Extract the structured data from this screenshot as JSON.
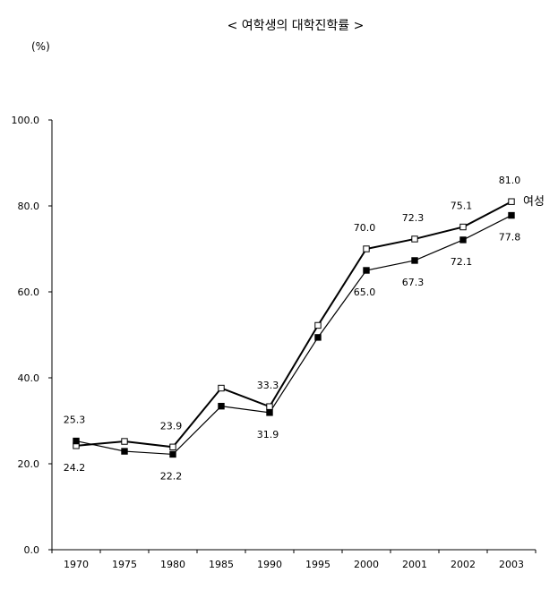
{
  "chart_data": {
    "type": "line",
    "title": "< 여학생의 대학진학률 >",
    "y_unit": "(%)",
    "categories": [
      "1970",
      "1975",
      "1980",
      "1985",
      "1990",
      "1995",
      "2000",
      "2001",
      "2002",
      "2003"
    ],
    "ylim": [
      0,
      100
    ],
    "y_ticks": [
      "0.0",
      "20.0",
      "40.0",
      "60.0",
      "80.0",
      "100.0"
    ],
    "grid": false,
    "series": [
      {
        "name": "여성",
        "marker": "open-square",
        "values": [
          24.2,
          25.2,
          23.9,
          37.6,
          33.3,
          52.2,
          70.0,
          72.3,
          75.1,
          81.0
        ]
      },
      {
        "marker": "filled-square",
        "values": [
          25.3,
          22.9,
          22.2,
          33.4,
          31.9,
          49.4,
          65.0,
          67.3,
          72.1,
          77.8
        ]
      }
    ],
    "data_labels": [
      {
        "text": "25.3",
        "x": "1970",
        "y": 25.3
      },
      {
        "text": "24.2",
        "x": "1970",
        "y": 24.2
      },
      {
        "text": "23.9",
        "x": "1980",
        "y": 23.9
      },
      {
        "text": "22.2",
        "x": "1980",
        "y": 22.2
      },
      {
        "text": "33.3",
        "x": "1990",
        "y": 33.3
      },
      {
        "text": "31.9",
        "x": "1990",
        "y": 31.9
      },
      {
        "text": "70.0",
        "x": "2000",
        "y": 70.0
      },
      {
        "text": "65.0",
        "x": "2000",
        "y": 65.0
      },
      {
        "text": "72.3",
        "x": "2001",
        "y": 72.3
      },
      {
        "text": "67.3",
        "x": "2001",
        "y": 67.3
      },
      {
        "text": "75.1",
        "x": "2002",
        "y": 75.1
      },
      {
        "text": "72.1",
        "x": "2002",
        "y": 72.1
      },
      {
        "text": "81.0",
        "x": "2003",
        "y": 81.0
      },
      {
        "text": "77.8",
        "x": "2003",
        "y": 77.8
      }
    ]
  }
}
